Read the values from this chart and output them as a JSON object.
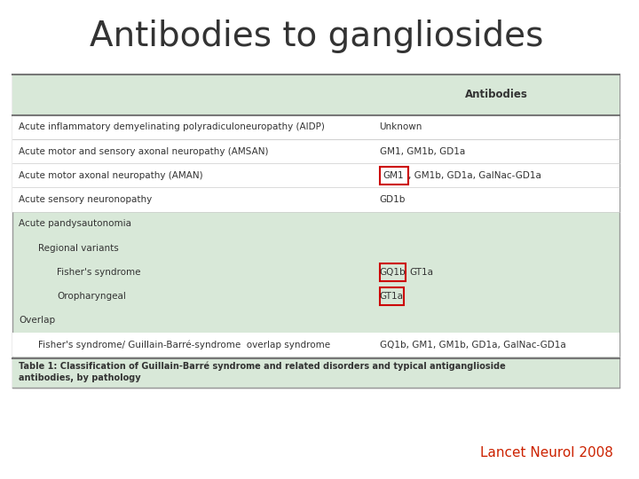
{
  "title": "Antibodies to gangliosides",
  "title_fontsize": 28,
  "title_color": "#333333",
  "bg_color": "#ffffff",
  "table_bg": "#d8e8d8",
  "table_border": "#888888",
  "footer_color": "#c8c8c8",
  "citation": "Lancet Neurol 2008",
  "citation_color": "#cc2200",
  "rows": [
    {
      "indent": 0,
      "condition": "Acute inflammatory demyelinating polyradiculoneuropathy (AIDP)",
      "antibody": "Unknown",
      "highlight": null
    },
    {
      "indent": 0,
      "condition": "Acute motor and sensory axonal neuropathy (AMSAN)",
      "antibody": "GM1, GM1b, GD1a",
      "highlight": null
    },
    {
      "indent": 0,
      "condition": "Acute motor axonal neuropathy (AMAN)",
      "antibody": "GM1, GM1b, GD1a, GalNac-GD1a",
      "highlight": "GM1"
    },
    {
      "indent": 0,
      "condition": "Acute sensory neuronopathy",
      "antibody": "GD1b",
      "highlight": null
    },
    {
      "indent": 0,
      "condition": "Acute pandysautonomia",
      "antibody": "",
      "highlight": null
    },
    {
      "indent": 1,
      "condition": "Regional variants",
      "antibody": "",
      "highlight": null
    },
    {
      "indent": 2,
      "condition": "Fisher's syndrome",
      "antibody": "GQ1b GT1a",
      "highlight": "GQ1b"
    },
    {
      "indent": 2,
      "condition": "Oropharyngeal",
      "antibody": "GT1a",
      "highlight": "GT1a"
    },
    {
      "indent": 0,
      "condition": "Overlap",
      "antibody": "",
      "highlight": null
    },
    {
      "indent": 1,
      "condition": "Fisher's syndrome/ Guillain-Barré-syndrome  overlap syndrome",
      "antibody": "GQ1b, GM1, GM1b, GD1a, GalNac-GD1a",
      "highlight": null
    }
  ],
  "caption": "Table 1: Classification of Guillain-Barré syndrome and related disorders and typical antiganglioside\nantibodies, by pathology",
  "header": "Antibodies"
}
